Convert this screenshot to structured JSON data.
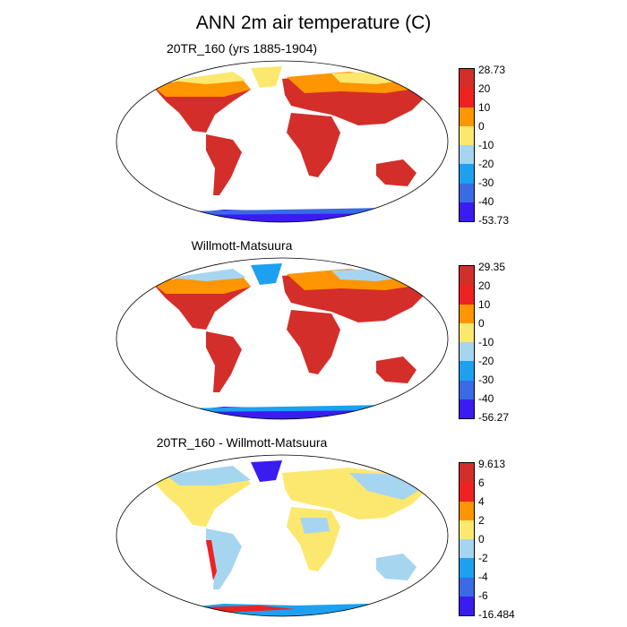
{
  "title": "ANN 2m air temperature (C)",
  "colors": {
    "absolute": [
      "#d42e2a",
      "#ee2222",
      "#ff9500",
      "#fce86e",
      "#a6d5f0",
      "#1da0f0",
      "#3a6ae6",
      "#3a1cf2"
    ],
    "difference": [
      "#d42e2a",
      "#ee2222",
      "#ff9500",
      "#fce86e",
      "#a6d5f0",
      "#1da0f0",
      "#3a6ae6",
      "#3a1cf2"
    ],
    "land_panel1": "#d53b2e",
    "ocean": "#ffffff"
  },
  "panels": [
    {
      "title": "20TR_160 (yrs 1885-1904)",
      "colorbar_labels": [
        "28.73",
        "20",
        "10",
        "0",
        "-10",
        "-20",
        "-30",
        "-40",
        "-53.73"
      ]
    },
    {
      "title": "Willmott-Matsuura",
      "colorbar_labels": [
        "29.35",
        "20",
        "10",
        "0",
        "-10",
        "-20",
        "-30",
        "-40",
        "-56.27"
      ]
    },
    {
      "title": "20TR_160 - Willmott-Matsuura",
      "colorbar_labels": [
        "9.613",
        "6",
        "4",
        "2",
        "0",
        "-2",
        "-4",
        "-6",
        "-16.484"
      ]
    }
  ]
}
